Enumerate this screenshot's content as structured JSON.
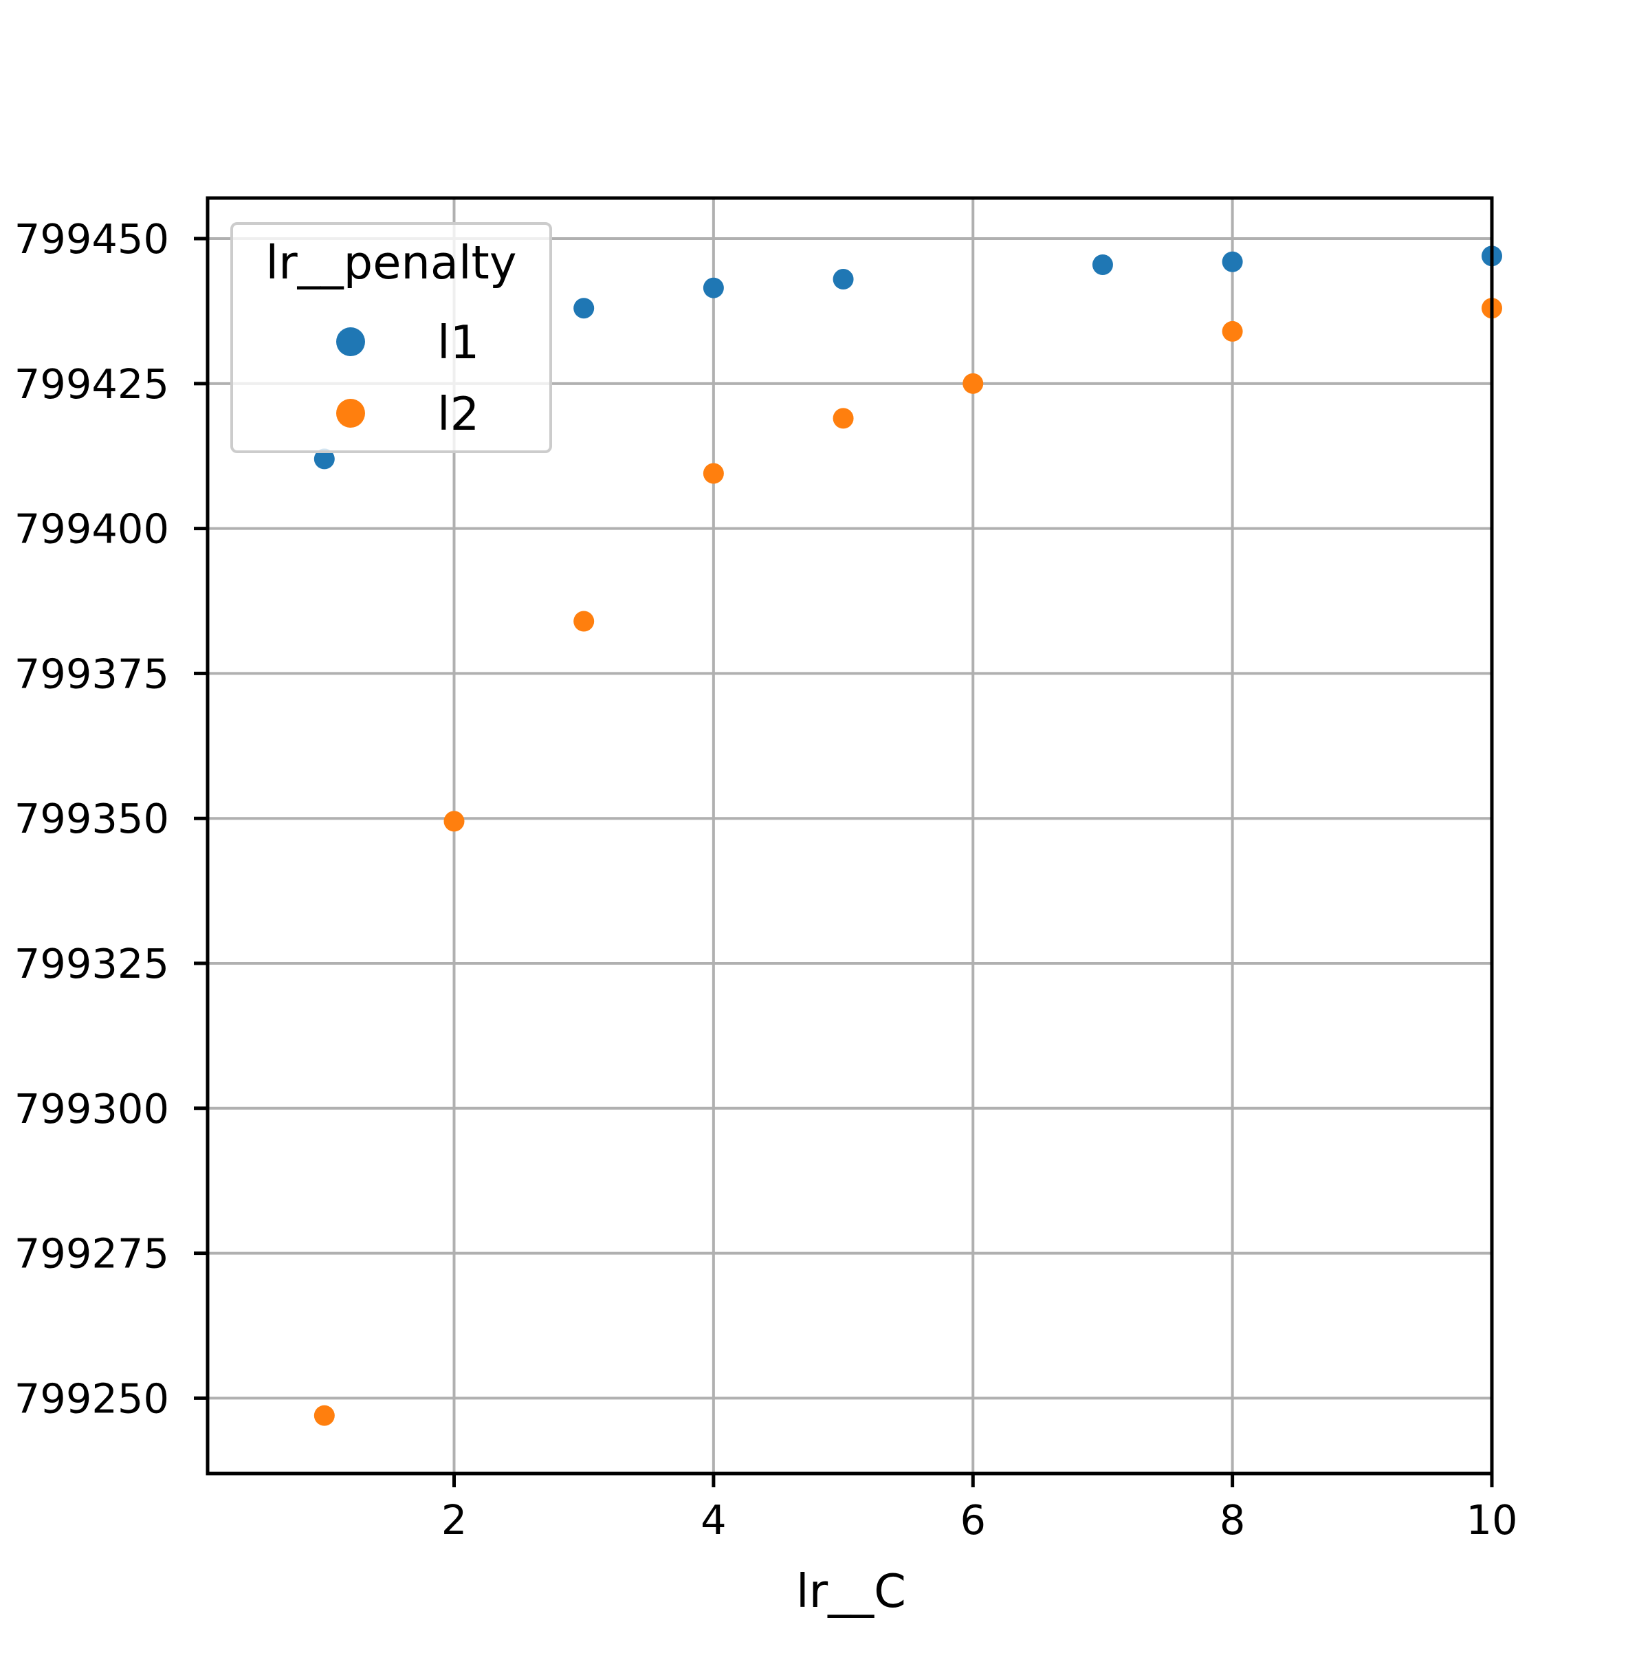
{
  "chart_data": {
    "type": "scatter",
    "title": "",
    "xlabel": "lr__C",
    "ylabel": "",
    "xlim": [
      0.1,
      10
    ],
    "ylim": [
      799237,
      799457
    ],
    "xticks": [
      2,
      4,
      6,
      8,
      10
    ],
    "xtick_labels": [
      "2",
      "4",
      "6",
      "8",
      "10"
    ],
    "yticks": [
      799250,
      799275,
      799300,
      799325,
      799350,
      799375,
      799400,
      799425,
      799450
    ],
    "ytick_labels": [
      "799250",
      "799275",
      "799300",
      "799325",
      "799350",
      "799375",
      "799400",
      "799425",
      "799450"
    ],
    "grid": true,
    "legend": {
      "title": "lr__penalty",
      "location": "upper-left"
    },
    "series": [
      {
        "name": "l1",
        "color": "#1f77b4",
        "points": [
          {
            "x": 1,
            "y": 799412
          },
          {
            "x": 3,
            "y": 799438
          },
          {
            "x": 4,
            "y": 799441.5
          },
          {
            "x": 5,
            "y": 799443
          },
          {
            "x": 7,
            "y": 799445.5
          },
          {
            "x": 8,
            "y": 799446
          },
          {
            "x": 10,
            "y": 799447
          }
        ]
      },
      {
        "name": "l2",
        "color": "#ff7f0e",
        "points": [
          {
            "x": 1,
            "y": 799247
          },
          {
            "x": 2,
            "y": 799349.5
          },
          {
            "x": 3,
            "y": 799384
          },
          {
            "x": 4,
            "y": 799409.5
          },
          {
            "x": 5,
            "y": 799419
          },
          {
            "x": 6,
            "y": 799425
          },
          {
            "x": 8,
            "y": 799434
          },
          {
            "x": 10,
            "y": 799438
          }
        ]
      }
    ]
  }
}
